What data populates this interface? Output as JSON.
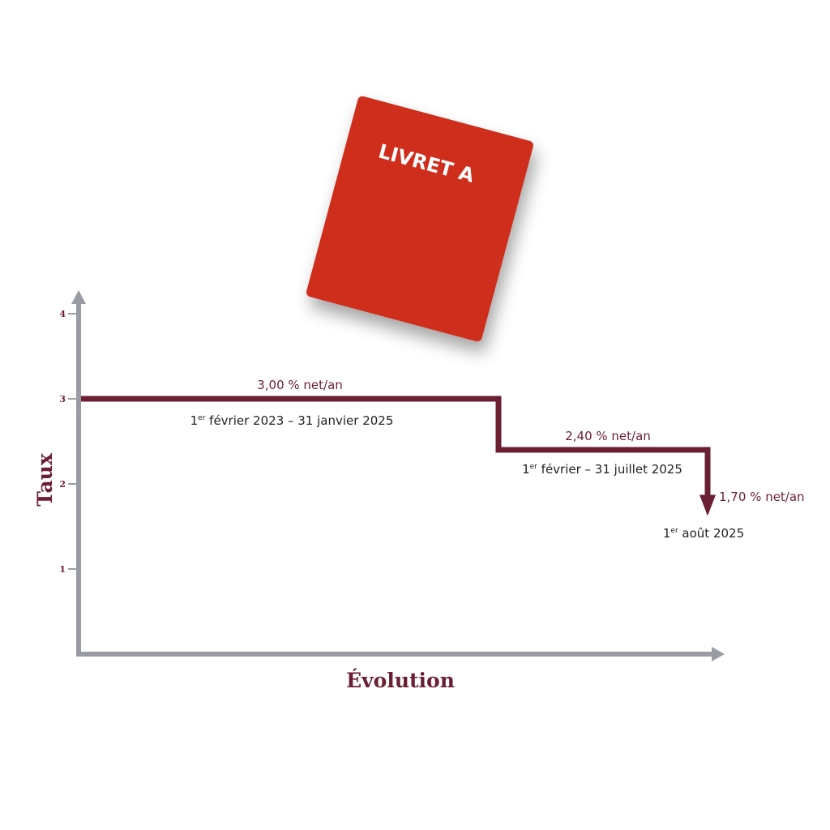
{
  "booklet": {
    "label": "LIVRET A",
    "color": "#cf2d1e"
  },
  "chart_data": {
    "type": "line",
    "step": true,
    "title": "",
    "xlabel": "Évolution",
    "ylabel": "Taux",
    "ylim": [
      0,
      4
    ],
    "yticks": [
      "1",
      "2",
      "3",
      "4"
    ],
    "grid": false,
    "series_color": "#6b1f33",
    "axis_color": "#9a9ca4",
    "segments": [
      {
        "value": 3.0,
        "rate_label": "3,00 % net/an",
        "period_sup": "er",
        "period_pre": "1",
        "period_label": " février 2023 – 31 janvier 2025"
      },
      {
        "value": 2.4,
        "rate_label": "2,40 % net/an",
        "period_sup": "er",
        "period_pre": "1",
        "period_label": " février – 31 juillet 2025"
      },
      {
        "value": 1.7,
        "rate_label": "1,70 %  net/an",
        "period_sup": "er",
        "period_pre": "1",
        "period_label": " août 2025"
      }
    ]
  }
}
